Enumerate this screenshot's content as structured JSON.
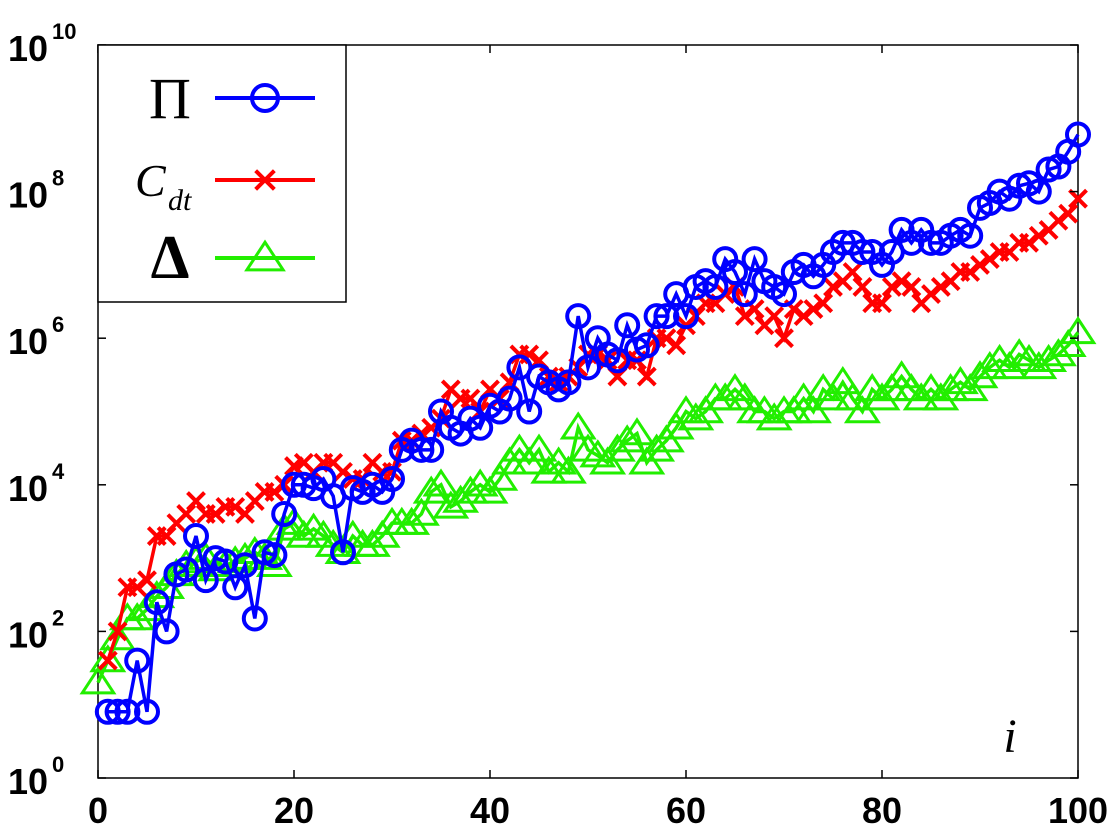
{
  "chart_data": {
    "type": "scatter",
    "xlabel": "i",
    "ylabel": "",
    "title": "",
    "xlim": [
      0,
      100
    ],
    "ylim": [
      1,
      10000000000
    ],
    "yscale": "log",
    "x_ticks": [
      "0",
      "20",
      "40",
      "60",
      "80",
      "100"
    ],
    "y_ticks": [
      {
        "base": "10",
        "exp": "0"
      },
      {
        "base": "10",
        "exp": "2"
      },
      {
        "base": "10",
        "exp": "4"
      },
      {
        "base": "10",
        "exp": "6"
      },
      {
        "base": "10",
        "exp": "8"
      },
      {
        "base": "10",
        "exp": "10"
      }
    ],
    "legend_position": "top-left",
    "series": [
      {
        "name": "Π",
        "legend_main": "Π",
        "legend_sub": "",
        "color": "#0000ff",
        "marker": "circle",
        "line": true,
        "x": [
          1,
          2,
          3,
          4,
          5,
          6,
          7,
          8,
          9,
          10,
          11,
          12,
          13,
          14,
          15,
          16,
          17,
          18,
          19,
          20,
          21,
          22,
          23,
          24,
          25,
          26,
          27,
          28,
          29,
          30,
          31,
          32,
          33,
          34,
          35,
          36,
          37,
          38,
          39,
          40,
          41,
          42,
          43,
          44,
          45,
          46,
          47,
          48,
          49,
          50,
          51,
          52,
          53,
          54,
          55,
          56,
          57,
          58,
          59,
          60,
          61,
          62,
          63,
          64,
          65,
          66,
          67,
          68,
          69,
          70,
          71,
          72,
          73,
          74,
          75,
          76,
          77,
          78,
          79,
          80,
          81,
          82,
          83,
          84,
          85,
          86,
          87,
          88,
          89,
          90,
          91,
          92,
          93,
          94,
          95,
          96,
          97,
          98,
          99,
          100
        ],
        "y": [
          8,
          8,
          8,
          40,
          8,
          250,
          100,
          600,
          700,
          2000,
          500,
          1000,
          900,
          400,
          800,
          150,
          1200,
          1100,
          4000,
          10000,
          10000,
          9000,
          12000,
          7000,
          1200,
          9000,
          8000,
          10000,
          8000,
          12000,
          30000,
          40000,
          30000,
          30000,
          100000,
          60000,
          50000,
          80000,
          60000,
          120000,
          100000,
          150000,
          400000,
          100000,
          300000,
          250000,
          200000,
          250000,
          2000000,
          400000,
          1000000,
          600000,
          500000,
          1500000,
          700000,
          800000,
          2000000,
          2000000,
          4000000,
          2000000,
          5000000,
          6000000,
          5000000,
          12000000,
          8000000,
          4000000,
          12000000,
          6000000,
          5000000,
          4000000,
          8000000,
          10000000,
          7000000,
          10000000,
          15000000,
          20000000,
          20000000,
          15000000,
          15000000,
          10000000,
          15000000,
          30000000,
          20000000,
          30000000,
          20000000,
          20000000,
          25000000,
          30000000,
          25000000,
          60000000,
          70000000,
          100000000,
          80000000,
          120000000,
          130000000,
          100000000,
          200000000,
          220000000,
          350000000,
          600000000
        ]
      },
      {
        "name": "C_dt",
        "legend_main": "C",
        "legend_sub": "dt",
        "color": "#ff0000",
        "marker": "x",
        "line": true,
        "x": [
          1,
          2,
          3,
          4,
          5,
          6,
          7,
          8,
          9,
          10,
          11,
          12,
          13,
          14,
          15,
          16,
          17,
          18,
          19,
          20,
          21,
          22,
          23,
          24,
          25,
          26,
          27,
          28,
          29,
          30,
          31,
          32,
          33,
          34,
          35,
          36,
          37,
          38,
          39,
          40,
          41,
          42,
          43,
          44,
          45,
          46,
          47,
          48,
          49,
          50,
          51,
          52,
          53,
          54,
          55,
          56,
          57,
          58,
          59,
          60,
          61,
          62,
          63,
          64,
          65,
          66,
          67,
          68,
          69,
          70,
          71,
          72,
          73,
          74,
          75,
          76,
          77,
          78,
          79,
          80,
          81,
          82,
          83,
          84,
          85,
          86,
          87,
          88,
          89,
          90,
          91,
          92,
          93,
          94,
          95,
          96,
          97,
          98,
          99,
          100
        ],
        "y": [
          40,
          100,
          400,
          400,
          500,
          2000,
          2000,
          3000,
          4000,
          6000,
          4000,
          4000,
          5000,
          5000,
          4000,
          6000,
          8000,
          8000,
          10000,
          18000,
          20000,
          15000,
          20000,
          20000,
          15000,
          12000,
          12000,
          20000,
          15000,
          15000,
          40000,
          40000,
          50000,
          60000,
          80000,
          200000,
          150000,
          150000,
          100000,
          200000,
          150000,
          250000,
          600000,
          600000,
          500000,
          300000,
          250000,
          300000,
          400000,
          600000,
          600000,
          500000,
          300000,
          500000,
          500000,
          300000,
          1000000,
          1000000,
          800000,
          1500000,
          2000000,
          3000000,
          3000000,
          4000000,
          5000000,
          2000000,
          2500000,
          1500000,
          2000000,
          1000000,
          2500000,
          2000000,
          2500000,
          3000000,
          5000000,
          6000000,
          8000000,
          5000000,
          3000000,
          3000000,
          5000000,
          6000000,
          5000000,
          3000000,
          4000000,
          5000000,
          6000000,
          8000000,
          8000000,
          10000000,
          12000000,
          15000000,
          15000000,
          20000000,
          20000000,
          25000000,
          30000000,
          40000000,
          50000000,
          80000000
        ]
      },
      {
        "name": "Δ",
        "legend_main": "Δ",
        "legend_sub": "",
        "color": "#22ee00",
        "marker": "triangle",
        "line": true,
        "x": [
          0,
          1,
          2,
          3,
          4,
          5,
          6,
          7,
          8,
          9,
          10,
          11,
          12,
          13,
          14,
          15,
          16,
          17,
          18,
          19,
          20,
          21,
          22,
          23,
          24,
          25,
          26,
          27,
          28,
          29,
          30,
          31,
          32,
          33,
          34,
          35,
          36,
          37,
          38,
          39,
          40,
          41,
          42,
          43,
          44,
          45,
          46,
          47,
          48,
          49,
          50,
          51,
          52,
          53,
          54,
          55,
          56,
          57,
          58,
          59,
          60,
          61,
          62,
          63,
          64,
          65,
          66,
          67,
          68,
          69,
          70,
          71,
          72,
          73,
          74,
          75,
          76,
          77,
          78,
          79,
          80,
          81,
          82,
          83,
          84,
          85,
          86,
          87,
          88,
          89,
          90,
          91,
          92,
          93,
          94,
          95,
          96,
          97,
          98,
          99,
          100
        ],
        "y": [
          20,
          40,
          80,
          150,
          150,
          200,
          300,
          400,
          600,
          800,
          900,
          1000,
          700,
          800,
          900,
          1000,
          1200,
          1000,
          800,
          2500,
          3000,
          2000,
          2500,
          2000,
          1500,
          1200,
          2000,
          1500,
          1500,
          2000,
          3000,
          3000,
          3000,
          4000,
          8000,
          10000,
          5000,
          6000,
          8000,
          10000,
          8000,
          12000,
          20000,
          30000,
          20000,
          30000,
          15000,
          20000,
          15000,
          60000,
          30000,
          25000,
          20000,
          30000,
          40000,
          50000,
          20000,
          30000,
          40000,
          60000,
          100000,
          80000,
          100000,
          150000,
          150000,
          200000,
          150000,
          100000,
          100000,
          80000,
          100000,
          100000,
          150000,
          100000,
          200000,
          150000,
          250000,
          150000,
          100000,
          200000,
          150000,
          200000,
          300000,
          200000,
          150000,
          200000,
          150000,
          200000,
          250000,
          200000,
          300000,
          400000,
          500000,
          400000,
          600000,
          500000,
          400000,
          500000,
          600000,
          800000,
          1200000
        ]
      }
    ]
  }
}
